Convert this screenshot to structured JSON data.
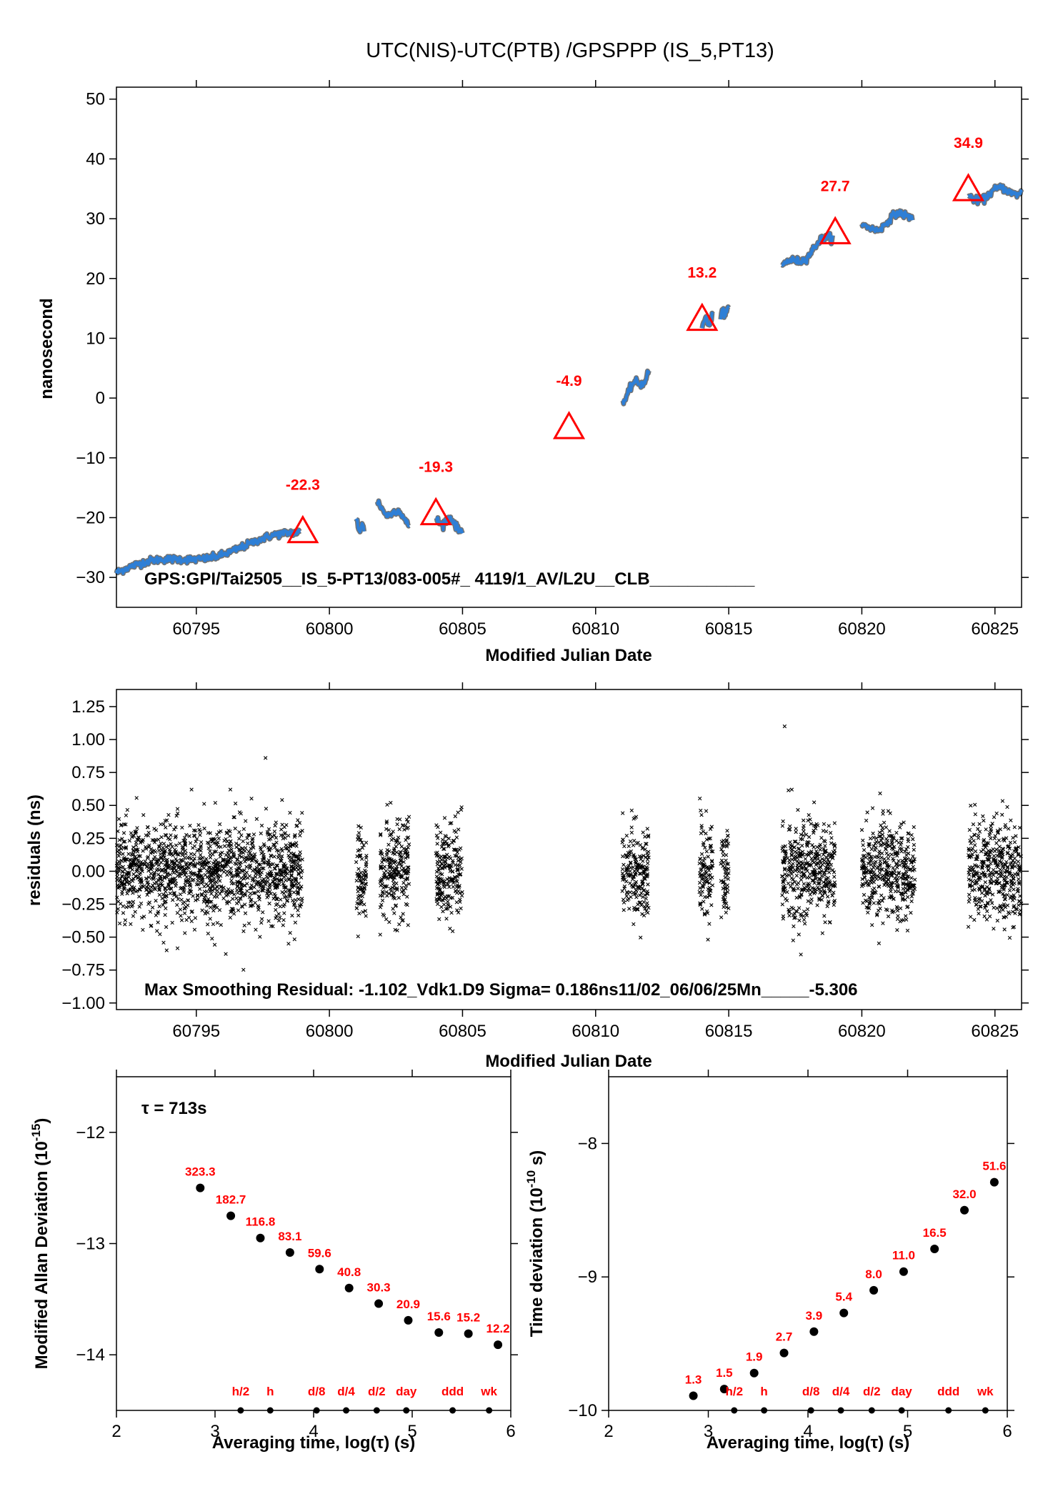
{
  "chart_data": [
    {
      "type": "scatter",
      "title": "UTC(NIS)-UTC(PTB)  /GPSPPP  (IS_5,PT13)",
      "xlabel": "Modified Julian Date",
      "ylabel": "nanosecond",
      "xlim": [
        60792,
        60826
      ],
      "ylim": [
        -35,
        52
      ],
      "xticks": [
        60795,
        60800,
        60805,
        60810,
        60815,
        60820,
        60825
      ],
      "yticks": [
        -30,
        -20,
        -10,
        0,
        10,
        20,
        30,
        40,
        50
      ],
      "ytick_labels": [
        "−30",
        "−20",
        "−10",
        "0",
        "10",
        "20",
        "30",
        "40",
        "50"
      ],
      "annotation": "GPS:GPI/Tai2505__IS_5-PT13/083-005#_  4119/1_AV/L2U__CLB___________",
      "segments": [
        {
          "start": [
            60792.0,
            -29.2
          ],
          "end": [
            60798.9,
            -22.8
          ]
        },
        {
          "start": [
            60801.0,
            -21.0
          ],
          "end": [
            60801.3,
            -22.0
          ]
        },
        {
          "start": [
            60801.8,
            -18.0
          ],
          "end": [
            60803.0,
            -20.5
          ]
        },
        {
          "start": [
            60804.0,
            -20.0
          ],
          "end": [
            60805.0,
            -21.5
          ]
        },
        {
          "start": [
            60811.0,
            0.0
          ],
          "end": [
            60812.0,
            4.2
          ]
        },
        {
          "start": [
            60814.0,
            12.5
          ],
          "end": [
            60814.4,
            13.0
          ]
        },
        {
          "start": [
            60814.7,
            14.0
          ],
          "end": [
            60815.0,
            14.5
          ]
        },
        {
          "start": [
            60817.0,
            21.5
          ],
          "end": [
            60818.9,
            27.0
          ]
        },
        {
          "start": [
            60820.0,
            28.0
          ],
          "end": [
            60821.9,
            31.0
          ]
        },
        {
          "start": [
            60824.0,
            33.5
          ],
          "end": [
            60826.0,
            35.0
          ]
        }
      ],
      "markers": [
        {
          "x": 60799,
          "y": -22.3,
          "label": "-22.3"
        },
        {
          "x": 60804,
          "y": -19.3,
          "label": "-19.3"
        },
        {
          "x": 60809,
          "y": -4.9,
          "label": "-4.9"
        },
        {
          "x": 60814,
          "y": 13.2,
          "label": "13.2"
        },
        {
          "x": 60819,
          "y": 27.7,
          "label": "27.7"
        },
        {
          "x": 60824,
          "y": 34.9,
          "label": "34.9"
        }
      ],
      "colors": {
        "series": "#2e7fd6",
        "marker": "#ff0000"
      }
    },
    {
      "type": "scatter",
      "xlabel": "Modified Julian Date",
      "ylabel": "residuals (ns)",
      "xlim": [
        60792,
        60826
      ],
      "ylim": [
        -1.05,
        1.38
      ],
      "xticks": [
        60795,
        60800,
        60805,
        60810,
        60815,
        60820,
        60825
      ],
      "yticks": [
        -1.0,
        -0.75,
        -0.5,
        -0.25,
        0.0,
        0.25,
        0.5,
        0.75,
        1.0,
        1.25
      ],
      "ytick_labels": [
        "−1.00",
        "−0.75",
        "−0.50",
        "−0.25",
        "0.00",
        "0.25",
        "0.50",
        "0.75",
        "1.00",
        "1.25"
      ],
      "annotation": "Max Smoothing Residual: -1.102_Vdk1.D9  Sigma= 0.186ns11/02_06/06/25Mn_____-5.306",
      "data_ranges": [
        [
          60792.0,
          60799.0
        ],
        [
          60801.0,
          60801.4
        ],
        [
          60801.9,
          60803.0
        ],
        [
          60804.0,
          60805.0
        ],
        [
          60811.0,
          60812.0
        ],
        [
          60813.9,
          60814.4
        ],
        [
          60814.7,
          60815.0
        ],
        [
          60817.0,
          60819.0
        ],
        [
          60820.0,
          60822.0
        ],
        [
          60824.0,
          60826.0
        ]
      ],
      "sigma": 0.186,
      "outliers": [
        {
          "x": 60817.1,
          "y": 1.1
        },
        {
          "x": 60797.6,
          "y": 0.86
        }
      ]
    },
    {
      "type": "scatter",
      "xlabel": "Averaging time, log(τ) (s)",
      "ylabel": "Modified Allan Deviation (10",
      "ylabel_sup": "-15",
      "ylabel_end": ")",
      "xlim": [
        2,
        6
      ],
      "ylim": [
        -14.5,
        -11.5
      ],
      "xticks": [
        2,
        3,
        4,
        5,
        6
      ],
      "yticks": [
        -12,
        -13,
        -14
      ],
      "ytick_labels": [
        "−12",
        "−13",
        "−14"
      ],
      "note": "τ = 713s",
      "points": [
        {
          "x": 2.85,
          "y": -12.5,
          "label": "323.3"
        },
        {
          "x": 3.16,
          "y": -12.75,
          "label": "182.7"
        },
        {
          "x": 3.46,
          "y": -12.95,
          "label": "116.8"
        },
        {
          "x": 3.76,
          "y": -13.08,
          "label": "83.1"
        },
        {
          "x": 4.06,
          "y": -13.23,
          "label": "59.6"
        },
        {
          "x": 4.36,
          "y": -13.4,
          "label": "40.8"
        },
        {
          "x": 4.66,
          "y": -13.54,
          "label": "30.3"
        },
        {
          "x": 4.96,
          "y": -13.69,
          "label": "20.9"
        },
        {
          "x": 5.27,
          "y": -13.8,
          "label": "15.6"
        },
        {
          "x": 5.57,
          "y": -13.81,
          "label": "15.2"
        },
        {
          "x": 5.87,
          "y": -13.91,
          "label": "12.2"
        }
      ],
      "period_marks": [
        {
          "x": 3.26,
          "label": "h/2"
        },
        {
          "x": 3.56,
          "label": "h"
        },
        {
          "x": 4.03,
          "label": "d/8"
        },
        {
          "x": 4.33,
          "label": "d/4"
        },
        {
          "x": 4.64,
          "label": "d/2"
        },
        {
          "x": 4.94,
          "label": "day"
        },
        {
          "x": 5.41,
          "label": "ddd"
        },
        {
          "x": 5.78,
          "label": "wk"
        }
      ]
    },
    {
      "type": "scatter",
      "xlabel": "Averaging time, log(τ) (s)",
      "ylabel": "Time deviation (10",
      "ylabel_sup": "-10",
      "ylabel_end": " s)",
      "xlim": [
        2,
        6
      ],
      "ylim": [
        -10,
        -7.5
      ],
      "xticks": [
        2,
        3,
        4,
        5,
        6
      ],
      "yticks": [
        -8,
        -9,
        -10
      ],
      "ytick_labels": [
        "−8",
        "−9",
        "−10"
      ],
      "points": [
        {
          "x": 2.85,
          "y": -9.89,
          "label": "1.3"
        },
        {
          "x": 3.16,
          "y": -9.84,
          "label": "1.5"
        },
        {
          "x": 3.46,
          "y": -9.72,
          "label": "1.9"
        },
        {
          "x": 3.76,
          "y": -9.57,
          "label": "2.7"
        },
        {
          "x": 4.06,
          "y": -9.41,
          "label": "3.9"
        },
        {
          "x": 4.36,
          "y": -9.27,
          "label": "5.4"
        },
        {
          "x": 4.66,
          "y": -9.1,
          "label": "8.0"
        },
        {
          "x": 4.96,
          "y": -8.96,
          "label": "11.0"
        },
        {
          "x": 5.27,
          "y": -8.79,
          "label": "16.5"
        },
        {
          "x": 5.57,
          "y": -8.5,
          "label": "32.0"
        },
        {
          "x": 5.87,
          "y": -8.29,
          "label": "51.6"
        }
      ],
      "period_marks": [
        {
          "x": 3.26,
          "label": "h/2"
        },
        {
          "x": 3.56,
          "label": "h"
        },
        {
          "x": 4.03,
          "label": "d/8"
        },
        {
          "x": 4.33,
          "label": "d/4"
        },
        {
          "x": 4.64,
          "label": "d/2"
        },
        {
          "x": 4.94,
          "label": "day"
        },
        {
          "x": 5.41,
          "label": "ddd"
        },
        {
          "x": 5.78,
          "label": "wk"
        }
      ]
    }
  ]
}
